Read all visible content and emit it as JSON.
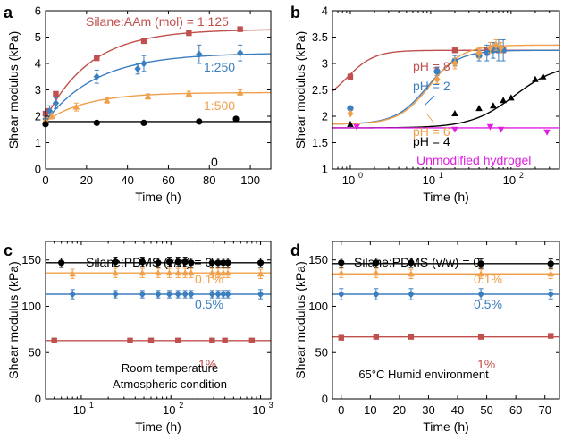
{
  "colors": {
    "red": "#C0504D",
    "blue": "#3D7EBF",
    "orange": "#F0A04B",
    "black": "#000000",
    "magenta": "#E020E0",
    "axis": "#000000"
  },
  "chart_data": [
    {
      "panel_label": "a",
      "type": "scatter",
      "xlabel": "Time (h)",
      "ylabel": "Shear modulus (kPa)",
      "xlim": [
        0,
        110
      ],
      "ylim": [
        0,
        6
      ],
      "xticks": [
        0,
        20,
        40,
        60,
        80,
        100
      ],
      "xtick_labels": [
        "0",
        "20",
        "40",
        "60",
        "80",
        "100"
      ],
      "yticks": [
        0,
        1,
        2,
        3,
        4,
        5,
        6
      ],
      "ytick_labels": [
        "0",
        "1",
        "2",
        "3",
        "4",
        "5",
        "6"
      ],
      "series": [
        {
          "name": "Silane:AAm (mol) = 1:125",
          "color_key": "red",
          "marker": "square",
          "x": [
            0,
            1,
            5,
            25,
            48,
            70,
            95
          ],
          "y": [
            2.1,
            2.2,
            2.85,
            4.2,
            4.85,
            5.15,
            5.3
          ],
          "err": [
            0,
            0,
            0,
            0,
            0,
            0,
            0
          ],
          "fit": {
            "kind": "exp",
            "y0": 1.9,
            "yinf": 5.3,
            "tau": 22
          }
        },
        {
          "name": "1:250",
          "color_key": "blue",
          "marker": "diamond",
          "x": [
            0,
            2,
            5,
            25,
            45,
            48,
            75,
            95
          ],
          "y": [
            1.9,
            2.2,
            2.5,
            3.5,
            3.8,
            4.0,
            4.35,
            4.4
          ],
          "err": [
            0.1,
            0.2,
            0.2,
            0.25,
            0.2,
            0.3,
            0.35,
            0.3
          ],
          "fit": {
            "kind": "exp",
            "y0": 1.8,
            "yinf": 4.4,
            "tau": 25
          }
        },
        {
          "name": "1:500",
          "color_key": "orange",
          "marker": "triangle",
          "x": [
            0,
            3,
            15,
            30,
            50,
            70,
            95
          ],
          "y": [
            1.85,
            2.0,
            2.35,
            2.6,
            2.75,
            2.85,
            2.9
          ],
          "err": [
            0.1,
            0.1,
            0.15,
            0.1,
            0.1,
            0.1,
            0.1
          ],
          "fit": {
            "kind": "exp",
            "y0": 1.8,
            "yinf": 2.9,
            "tau": 20
          }
        },
        {
          "name": "0",
          "color_key": "black",
          "marker": "circle",
          "x": [
            0,
            25,
            48,
            75,
            93
          ],
          "y": [
            1.7,
            1.75,
            1.75,
            1.8,
            1.9
          ],
          "err": [
            0.05,
            0.05,
            0.05,
            0.05,
            0.05
          ],
          "fit": {
            "kind": "flat",
            "y": 1.8
          }
        }
      ]
    },
    {
      "panel_label": "b",
      "type": "scatter",
      "xlabel": "Time (h)",
      "ylabel": "Shear modulus (kPa)",
      "xscale": "log",
      "xlim": [
        0.6,
        400
      ],
      "ylim": [
        1,
        4
      ],
      "xticks": [
        1,
        10,
        100
      ],
      "xtick_labels": [
        "10",
        "10",
        "10"
      ],
      "xtick_exponents": [
        "0",
        "1",
        "2"
      ],
      "yticks": [
        1,
        1.5,
        2,
        2.5,
        3,
        3.5,
        4
      ],
      "ytick_labels": [
        "1",
        "1.5",
        "2",
        "2.5",
        "3",
        "3.5",
        "4"
      ],
      "series": [
        {
          "name": "pH = 8",
          "color_key": "red",
          "marker": "square",
          "x": [
            1,
            20,
            50,
            70,
            80
          ],
          "y": [
            2.75,
            3.25,
            3.25,
            3.25,
            3.25
          ],
          "err": [
            0.05,
            0,
            0,
            0,
            0
          ],
          "fit": {
            "kind": "logistic",
            "ymin": 2.2,
            "ymax": 3.25,
            "xmid": 0.9,
            "slope": 2.5
          }
        },
        {
          "name": "pH = 2",
          "color_key": "blue",
          "marker": "circle",
          "x": [
            1,
            12,
            20,
            40,
            50,
            60,
            70,
            80
          ],
          "y": [
            2.15,
            2.85,
            3.05,
            3.15,
            3.2,
            3.25,
            3.25,
            3.25
          ],
          "err": [
            0,
            0.08,
            0.1,
            0.1,
            0.15,
            0.15,
            0.2,
            0.2
          ],
          "fit": {
            "kind": "logistic",
            "ymin": 1.85,
            "ymax": 3.25,
            "xmid": 9,
            "slope": 2.2
          }
        },
        {
          "name": "pH = 6",
          "color_key": "orange",
          "marker": "diamond",
          "x": [
            1,
            12,
            20,
            40,
            55,
            65,
            75
          ],
          "y": [
            2.05,
            2.7,
            3.0,
            3.2,
            3.3,
            3.35,
            3.3
          ],
          "err": [
            0,
            0.08,
            0.1,
            0.1,
            0.1,
            0.1,
            0.1
          ],
          "fit": {
            "kind": "logistic",
            "ymin": 1.85,
            "ymax": 3.35,
            "xmid": 10,
            "slope": 2.2
          }
        },
        {
          "name": "pH = 4",
          "color_key": "black",
          "marker": "triangle",
          "x": [
            1,
            20,
            40,
            60,
            80,
            100,
            200,
            250
          ],
          "y": [
            1.85,
            2.05,
            2.15,
            2.2,
            2.3,
            2.35,
            2.7,
            2.75
          ],
          "err": [
            0,
            0,
            0,
            0,
            0,
            0,
            0,
            0
          ],
          "fit": {
            "kind": "logistic",
            "ymin": 1.78,
            "ymax": 3.0,
            "xmid": 110,
            "slope": 1.6
          }
        },
        {
          "name": "Unmodified hydrogel",
          "color_key": "magenta",
          "marker": "tri-down",
          "x": [
            1.2,
            20,
            55,
            75,
            280
          ],
          "y": [
            1.8,
            1.75,
            1.8,
            1.75,
            1.7
          ],
          "err": [
            0,
            0,
            0,
            0,
            0
          ],
          "fit": {
            "kind": "flat",
            "y": 1.78
          }
        }
      ]
    },
    {
      "panel_label": "c",
      "type": "scatter",
      "xlabel": "Time (h)",
      "ylabel": "Shear modulus (kPa)",
      "xscale": "log",
      "xlim": [
        4,
        1300
      ],
      "ylim": [
        0,
        170
      ],
      "xticks": [
        10,
        100,
        1000
      ],
      "xtick_labels": [
        "10",
        "10",
        "10"
      ],
      "xtick_exponents": [
        "1",
        "2",
        "3"
      ],
      "yticks": [
        0,
        50,
        100,
        150
      ],
      "ytick_labels": [
        "0",
        "50",
        "100",
        "150"
      ],
      "annotations": [
        "Room temperature",
        "Atmospheric condition"
      ],
      "series": [
        {
          "name": "Silane:PDMS (v/w) = 0",
          "color_key": "black",
          "marker": "circle",
          "x": [
            6,
            24,
            48,
            72,
            96,
            120,
            144,
            168,
            288,
            336,
            384,
            432,
            1000
          ],
          "y": [
            147,
            148,
            148,
            147,
            148,
            148,
            148,
            147,
            147,
            147,
            147,
            147,
            147
          ],
          "err": [
            5,
            5,
            5,
            5,
            5,
            5,
            5,
            5,
            5,
            5,
            5,
            5,
            5
          ],
          "fit": {
            "kind": "flat",
            "y": 147
          }
        },
        {
          "name": "0.1%",
          "color_key": "orange",
          "marker": "triangle",
          "x": [
            8,
            24,
            48,
            72,
            96,
            120,
            144,
            168,
            288,
            336,
            384,
            432,
            1000
          ],
          "y": [
            135,
            136,
            136,
            136,
            136,
            136,
            136,
            136,
            136,
            136,
            136,
            136,
            135
          ],
          "err": [
            5,
            5,
            5,
            5,
            5,
            5,
            5,
            5,
            5,
            5,
            5,
            5,
            5
          ],
          "fit": {
            "kind": "flat",
            "y": 136
          }
        },
        {
          "name": "0.5%",
          "color_key": "blue",
          "marker": "diamond",
          "x": [
            8,
            24,
            48,
            72,
            96,
            120,
            144,
            168,
            288,
            336,
            384,
            432,
            1000
          ],
          "y": [
            113,
            113,
            113,
            113,
            113,
            113,
            113,
            113,
            113,
            113,
            113,
            113,
            113
          ],
          "err": [
            5,
            4,
            4,
            4,
            4,
            4,
            4,
            4,
            4,
            4,
            4,
            4,
            5
          ],
          "fit": {
            "kind": "flat",
            "y": 113
          }
        },
        {
          "name": "1%",
          "color_key": "red",
          "marker": "square",
          "x": [
            5,
            35,
            60,
            120,
            288,
            400,
            800
          ],
          "y": [
            63,
            63,
            63,
            63,
            63,
            63,
            63
          ],
          "err": [
            0,
            0,
            0,
            0,
            0,
            0,
            0
          ],
          "fit": {
            "kind": "flat",
            "y": 63
          }
        }
      ]
    },
    {
      "panel_label": "d",
      "type": "scatter",
      "xlabel": "Time (h)",
      "ylabel": "Shear modulus (kPa)",
      "xlim": [
        -3,
        75
      ],
      "ylim": [
        0,
        170
      ],
      "xticks": [
        0,
        10,
        20,
        30,
        40,
        50,
        60,
        70
      ],
      "xtick_labels": [
        "0",
        "10",
        "20",
        "30",
        "40",
        "50",
        "60",
        "70"
      ],
      "yticks": [
        0,
        50,
        100,
        150
      ],
      "ytick_labels": [
        "0",
        "50",
        "100",
        "150"
      ],
      "annotations": [
        "65°C Humid environment"
      ],
      "series": [
        {
          "name": "Silane:PDMS (v/w) = 0",
          "color_key": "black",
          "marker": "circle",
          "x": [
            0,
            12,
            24,
            48,
            72
          ],
          "y": [
            147,
            147,
            147,
            146,
            146
          ],
          "err": [
            5,
            5,
            5,
            5,
            5
          ],
          "fit": {
            "kind": "flat",
            "y": 146
          }
        },
        {
          "name": "0.1%",
          "color_key": "orange",
          "marker": "triangle",
          "x": [
            0,
            12,
            24,
            48,
            72
          ],
          "y": [
            136,
            136,
            135,
            135,
            135
          ],
          "err": [
            5,
            5,
            5,
            5,
            5
          ],
          "fit": {
            "kind": "flat",
            "y": 135
          }
        },
        {
          "name": "0.5%",
          "color_key": "blue",
          "marker": "diamond",
          "x": [
            0,
            12,
            24,
            48,
            72
          ],
          "y": [
            113,
            113,
            113,
            113,
            113
          ],
          "err": [
            6,
            6,
            6,
            6,
            5
          ],
          "fit": {
            "kind": "flat",
            "y": 113
          }
        },
        {
          "name": "1%",
          "color_key": "red",
          "marker": "square",
          "x": [
            0,
            12,
            24,
            48,
            72
          ],
          "y": [
            66,
            67,
            67,
            67,
            68
          ],
          "err": [
            0,
            0,
            0,
            0,
            0
          ],
          "fit": {
            "kind": "flat",
            "y": 67
          }
        }
      ]
    }
  ]
}
